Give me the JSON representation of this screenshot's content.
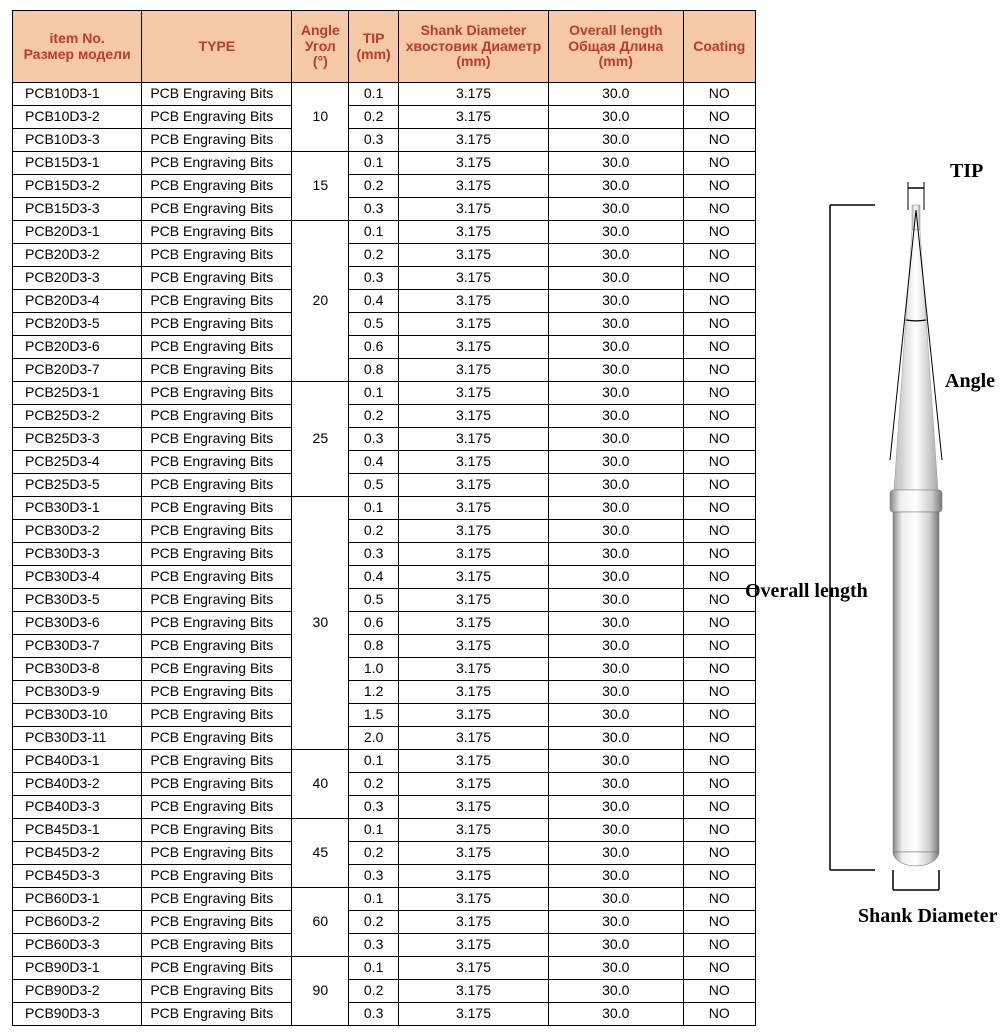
{
  "headers": {
    "item": [
      "item No.",
      "Размер модели"
    ],
    "type": [
      "TYPE"
    ],
    "angle": [
      "Angle",
      "Угол",
      "(°)"
    ],
    "tip": [
      "TIP",
      "(mm)"
    ],
    "shank": [
      "Shank Diameter",
      "хвостовик  Диаметр",
      "(mm)"
    ],
    "length": [
      "Overall length",
      "Общая  Длина",
      "(mm)"
    ],
    "coating": [
      "Coating"
    ]
  },
  "colors": {
    "header_bg": "#f6c9a6",
    "header_text": "#c0392b",
    "border": "#000000",
    "cell_text": "#000000"
  },
  "type_label": "PCB Engraving Bits",
  "shank_value": "3.175",
  "length_value": "30.0",
  "coating_value": "NO",
  "groups": [
    {
      "angle": "10",
      "rows": [
        {
          "item": "PCB10D3-1",
          "tip": "0.1"
        },
        {
          "item": "PCB10D3-2",
          "tip": "0.2"
        },
        {
          "item": "PCB10D3-3",
          "tip": "0.3"
        }
      ]
    },
    {
      "angle": "15",
      "rows": [
        {
          "item": "PCB15D3-1",
          "tip": "0.1"
        },
        {
          "item": "PCB15D3-2",
          "tip": "0.2"
        },
        {
          "item": "PCB15D3-3",
          "tip": "0.3"
        }
      ]
    },
    {
      "angle": "20",
      "rows": [
        {
          "item": "PCB20D3-1",
          "tip": "0.1"
        },
        {
          "item": "PCB20D3-2",
          "tip": "0.2"
        },
        {
          "item": "PCB20D3-3",
          "tip": "0.3"
        },
        {
          "item": "PCB20D3-4",
          "tip": "0.4"
        },
        {
          "item": "PCB20D3-5",
          "tip": "0.5"
        },
        {
          "item": "PCB20D3-6",
          "tip": "0.6"
        },
        {
          "item": "PCB20D3-7",
          "tip": "0.8"
        }
      ]
    },
    {
      "angle": "25",
      "rows": [
        {
          "item": "PCB25D3-1",
          "tip": "0.1"
        },
        {
          "item": "PCB25D3-2",
          "tip": "0.2"
        },
        {
          "item": "PCB25D3-3",
          "tip": "0.3"
        },
        {
          "item": "PCB25D3-4",
          "tip": "0.4"
        },
        {
          "item": "PCB25D3-5",
          "tip": "0.5"
        }
      ]
    },
    {
      "angle": "30",
      "rows": [
        {
          "item": "PCB30D3-1",
          "tip": "0.1"
        },
        {
          "item": "PCB30D3-2",
          "tip": "0.2"
        },
        {
          "item": "PCB30D3-3",
          "tip": "0.3"
        },
        {
          "item": "PCB30D3-4",
          "tip": "0.4"
        },
        {
          "item": "PCB30D3-5",
          "tip": "0.5"
        },
        {
          "item": "PCB30D3-6",
          "tip": "0.6"
        },
        {
          "item": "PCB30D3-7",
          "tip": "0.8"
        },
        {
          "item": "PCB30D3-8",
          "tip": "1.0"
        },
        {
          "item": "PCB30D3-9",
          "tip": "1.2"
        },
        {
          "item": "PCB30D3-10",
          "tip": "1.5"
        },
        {
          "item": "PCB30D3-11",
          "tip": "2.0"
        }
      ]
    },
    {
      "angle": "40",
      "rows": [
        {
          "item": "PCB40D3-1",
          "tip": "0.1"
        },
        {
          "item": "PCB40D3-2",
          "tip": "0.2"
        },
        {
          "item": "PCB40D3-3",
          "tip": "0.3"
        }
      ]
    },
    {
      "angle": "45",
      "rows": [
        {
          "item": "PCB45D3-1",
          "tip": "0.1"
        },
        {
          "item": "PCB45D3-2",
          "tip": "0.2"
        },
        {
          "item": "PCB45D3-3",
          "tip": "0.3"
        }
      ]
    },
    {
      "angle": "60",
      "rows": [
        {
          "item": "PCB60D3-1",
          "tip": "0.1"
        },
        {
          "item": "PCB60D3-2",
          "tip": "0.2"
        },
        {
          "item": "PCB60D3-3",
          "tip": "0.3"
        }
      ]
    },
    {
      "angle": "90",
      "rows": [
        {
          "item": "PCB90D3-1",
          "tip": "0.1"
        },
        {
          "item": "PCB90D3-2",
          "tip": "0.2"
        },
        {
          "item": "PCB90D3-3",
          "tip": "0.3"
        }
      ]
    }
  ],
  "diagram": {
    "labels": {
      "tip": "TIP",
      "angle": "Angle",
      "length": "Overall length",
      "shank": "Shank Diameter"
    }
  }
}
